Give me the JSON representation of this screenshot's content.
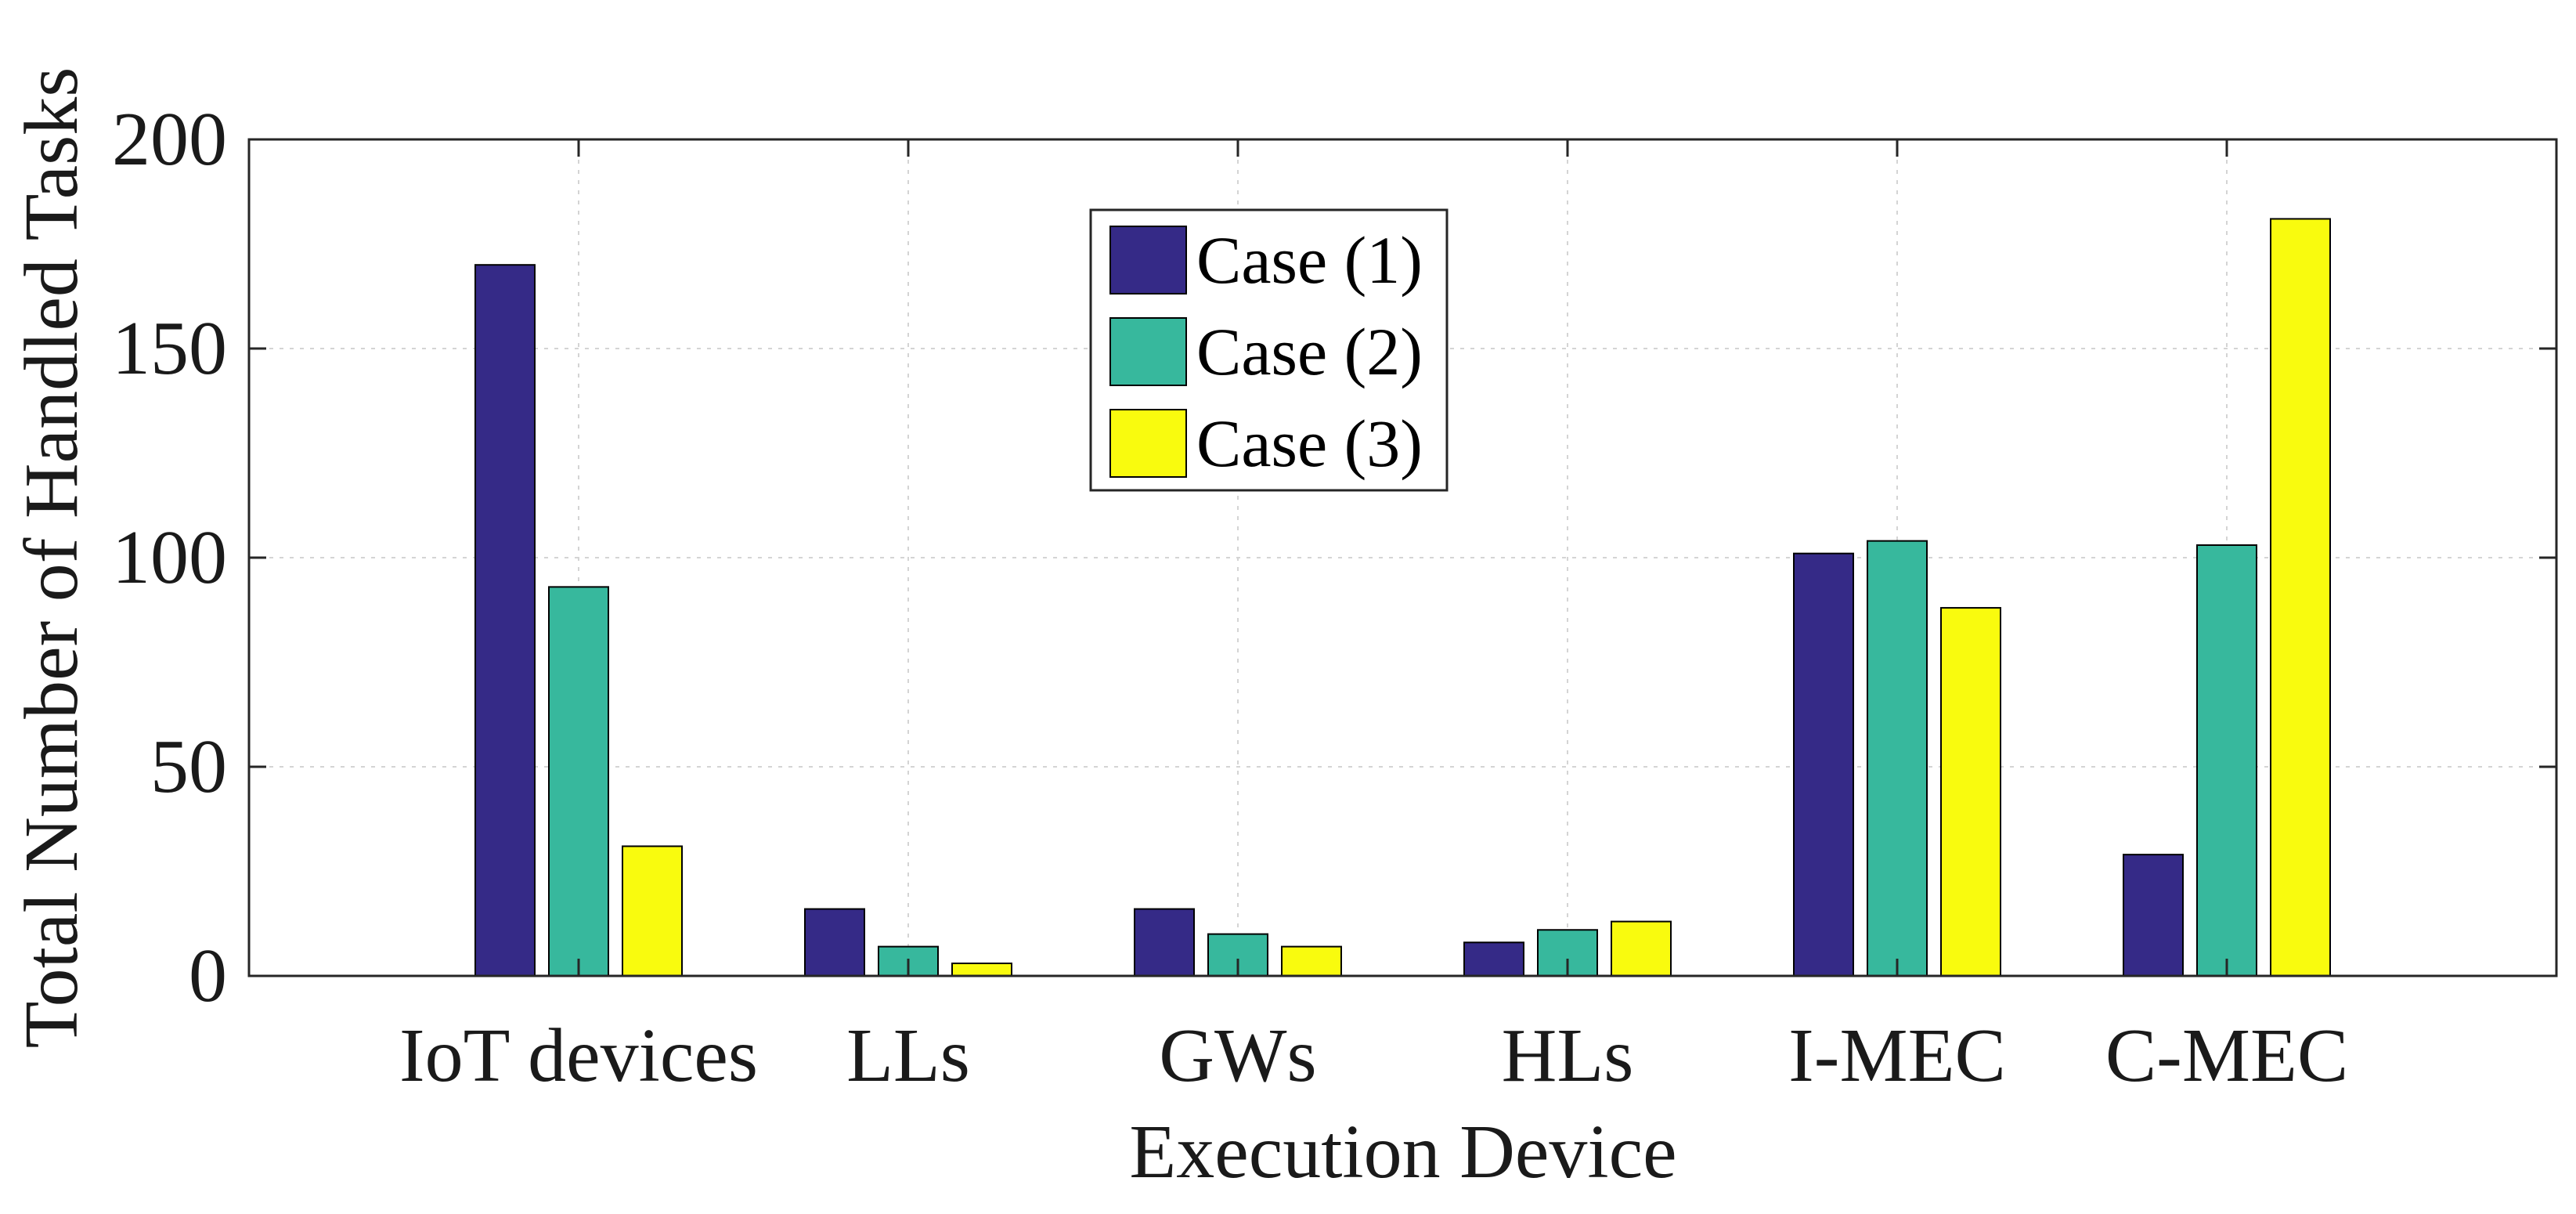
{
  "chart_data": {
    "type": "bar",
    "title": "",
    "xlabel": "Execution Device",
    "ylabel": "Total Number of Handled Tasks",
    "categories": [
      "IoT devices",
      "LLs",
      "GWs",
      "HLs",
      "I-MEC",
      "C-MEC"
    ],
    "ylim": [
      0,
      200
    ],
    "yticks": [
      0,
      50,
      100,
      150,
      200
    ],
    "grid": true,
    "legend_position": "top-center",
    "series": [
      {
        "name": "Case (1)",
        "color": "#352a87",
        "values": [
          170,
          16,
          16,
          8,
          101,
          29
        ]
      },
      {
        "name": "Case (2)",
        "color": "#37b89d",
        "values": [
          93,
          7,
          10,
          11,
          104,
          103
        ]
      },
      {
        "name": "Case (3)",
        "color": "#f9fb0e",
        "values": [
          31,
          3,
          7,
          13,
          88,
          181
        ]
      }
    ]
  }
}
